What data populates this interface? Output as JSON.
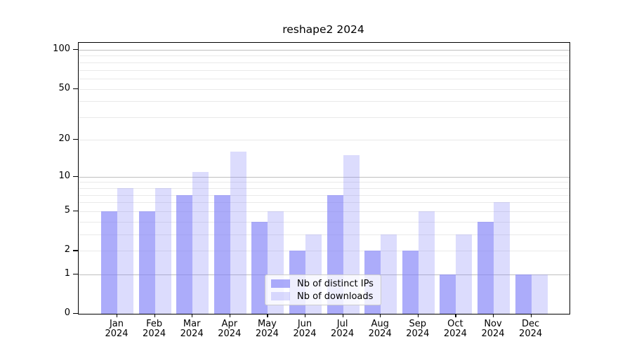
{
  "chart_data": {
    "type": "bar",
    "title": "reshape2 2024",
    "categories": [
      "Jan",
      "Feb",
      "Mar",
      "Apr",
      "May",
      "Jun",
      "Jul",
      "Aug",
      "Sep",
      "Oct",
      "Nov",
      "Dec"
    ],
    "year": "2024",
    "series": [
      {
        "name": "Nb of distinct IPs",
        "values": [
          5,
          5,
          7,
          7,
          4,
          2,
          7,
          2,
          2,
          1,
          4,
          1
        ]
      },
      {
        "name": "Nb of downloads",
        "values": [
          8,
          8,
          11,
          16,
          5,
          3,
          15,
          3,
          5,
          3,
          6,
          1
        ]
      }
    ],
    "xlabel": "",
    "ylabel": "",
    "yscale": "log1p",
    "ylim": [
      0,
      113
    ],
    "yticks": [
      0,
      1,
      2,
      5,
      10,
      20,
      50,
      100
    ],
    "gridlines_major": [
      1,
      10,
      100
    ],
    "gridlines_minor": [
      2,
      3,
      4,
      5,
      6,
      7,
      8,
      9,
      20,
      30,
      40,
      50,
      60,
      70,
      80,
      90
    ],
    "grid": true,
    "legend_position": "lower center",
    "colors": {
      "bar_base": "#8080f8",
      "bar_ips": "rgba(128,128,248,0.65)",
      "bar_downloads": "rgba(128,128,248,0.28)",
      "gridline_major": "#bfbfbf",
      "gridline_minor": "#e9e9e9",
      "spine": "#000000"
    }
  }
}
